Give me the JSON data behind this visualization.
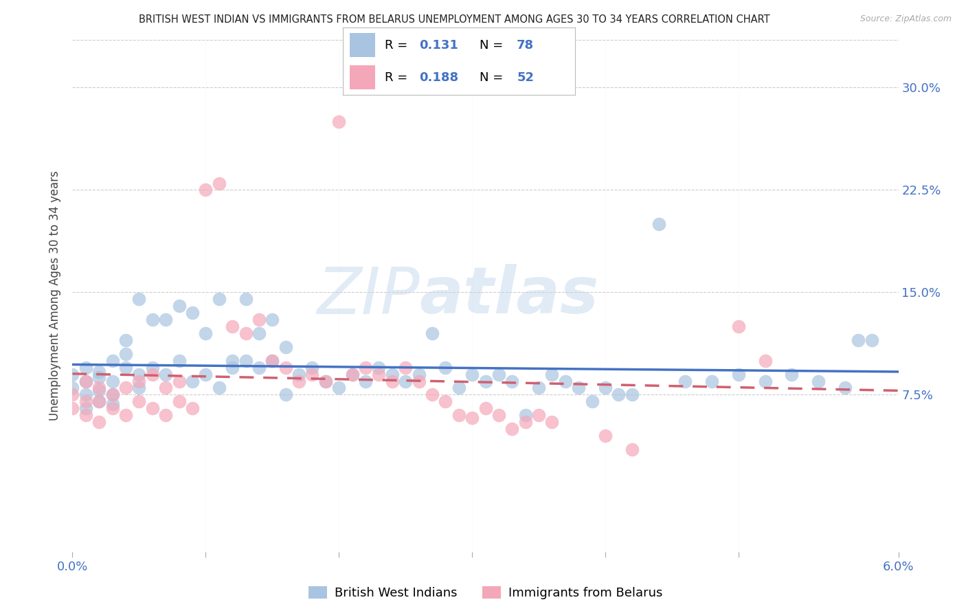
{
  "title": "BRITISH WEST INDIAN VS IMMIGRANTS FROM BELARUS UNEMPLOYMENT AMONG AGES 30 TO 34 YEARS CORRELATION CHART",
  "source": "Source: ZipAtlas.com",
  "ylabel": "Unemployment Among Ages 30 to 34 years",
  "yticks": [
    0.075,
    0.15,
    0.225,
    0.3
  ],
  "ytick_labels": [
    "7.5%",
    "15.0%",
    "22.5%",
    "30.0%"
  ],
  "xlim": [
    0.0,
    0.062
  ],
  "ylim": [
    -0.04,
    0.335
  ],
  "legend_label1": "British West Indians",
  "legend_label2": "Immigrants from Belarus",
  "r1": "0.131",
  "n1": "78",
  "r2": "0.188",
  "n2": "52",
  "color_blue": "#a8c4e0",
  "color_pink": "#f4a7b9",
  "line_blue": "#4472c4",
  "line_pink": "#d06070",
  "watermark": "ZIPatlas",
  "title_color": "#222222",
  "axis_color": "#4472c4",
  "grid_color": "#cccccc",
  "blue_x": [
    0.0,
    0.0,
    0.001,
    0.001,
    0.001,
    0.001,
    0.002,
    0.002,
    0.002,
    0.002,
    0.003,
    0.003,
    0.003,
    0.003,
    0.004,
    0.004,
    0.004,
    0.005,
    0.005,
    0.005,
    0.006,
    0.006,
    0.007,
    0.007,
    0.008,
    0.008,
    0.009,
    0.009,
    0.01,
    0.01,
    0.011,
    0.011,
    0.012,
    0.012,
    0.013,
    0.013,
    0.014,
    0.014,
    0.015,
    0.015,
    0.016,
    0.016,
    0.017,
    0.018,
    0.019,
    0.02,
    0.021,
    0.022,
    0.023,
    0.024,
    0.025,
    0.026,
    0.027,
    0.028,
    0.029,
    0.03,
    0.031,
    0.032,
    0.033,
    0.034,
    0.035,
    0.036,
    0.037,
    0.038,
    0.039,
    0.04,
    0.041,
    0.042,
    0.044,
    0.046,
    0.048,
    0.05,
    0.052,
    0.054,
    0.056,
    0.058,
    0.059,
    0.06
  ],
  "blue_y": [
    0.09,
    0.08,
    0.095,
    0.085,
    0.075,
    0.065,
    0.088,
    0.078,
    0.092,
    0.07,
    0.1,
    0.085,
    0.075,
    0.068,
    0.095,
    0.105,
    0.115,
    0.09,
    0.08,
    0.145,
    0.13,
    0.095,
    0.13,
    0.09,
    0.14,
    0.1,
    0.135,
    0.085,
    0.12,
    0.09,
    0.145,
    0.08,
    0.1,
    0.095,
    0.145,
    0.1,
    0.12,
    0.095,
    0.13,
    0.1,
    0.11,
    0.075,
    0.09,
    0.095,
    0.085,
    0.08,
    0.09,
    0.085,
    0.095,
    0.09,
    0.085,
    0.09,
    0.12,
    0.095,
    0.08,
    0.09,
    0.085,
    0.09,
    0.085,
    0.06,
    0.08,
    0.09,
    0.085,
    0.08,
    0.07,
    0.08,
    0.075,
    0.075,
    0.2,
    0.085,
    0.085,
    0.09,
    0.085,
    0.09,
    0.085,
    0.08,
    0.115,
    0.115
  ],
  "pink_x": [
    0.0,
    0.0,
    0.001,
    0.001,
    0.001,
    0.002,
    0.002,
    0.002,
    0.003,
    0.003,
    0.004,
    0.004,
    0.005,
    0.005,
    0.006,
    0.006,
    0.007,
    0.007,
    0.008,
    0.008,
    0.009,
    0.01,
    0.011,
    0.012,
    0.013,
    0.014,
    0.015,
    0.016,
    0.017,
    0.018,
    0.019,
    0.02,
    0.021,
    0.022,
    0.023,
    0.024,
    0.025,
    0.026,
    0.027,
    0.028,
    0.029,
    0.03,
    0.031,
    0.032,
    0.033,
    0.034,
    0.035,
    0.036,
    0.04,
    0.042,
    0.05,
    0.052
  ],
  "pink_y": [
    0.075,
    0.065,
    0.085,
    0.07,
    0.06,
    0.08,
    0.07,
    0.055,
    0.075,
    0.065,
    0.08,
    0.06,
    0.085,
    0.07,
    0.09,
    0.065,
    0.08,
    0.06,
    0.085,
    0.07,
    0.065,
    0.225,
    0.23,
    0.125,
    0.12,
    0.13,
    0.1,
    0.095,
    0.085,
    0.09,
    0.085,
    0.275,
    0.09,
    0.095,
    0.09,
    0.085,
    0.095,
    0.085,
    0.075,
    0.07,
    0.06,
    0.058,
    0.065,
    0.06,
    0.05,
    0.055,
    0.06,
    0.055,
    0.045,
    0.035,
    0.125,
    0.1
  ]
}
